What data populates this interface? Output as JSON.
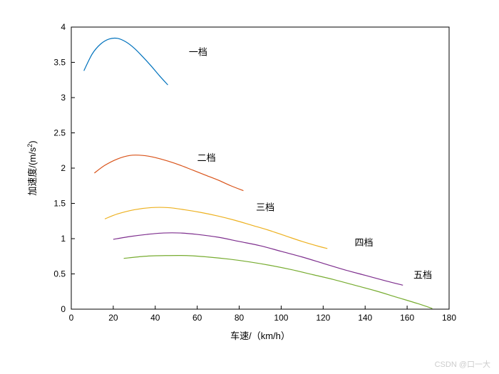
{
  "chart": {
    "type": "line",
    "background_color": "#ffffff",
    "plot_border_color": "#000000",
    "xlabel": "车速/（km/h）",
    "ylabel": "加速度/(m/s²)",
    "label_fontsize": 13,
    "tick_fontsize": 12,
    "xlim": [
      0,
      180
    ],
    "ylim": [
      0,
      4
    ],
    "xtick_step": 20,
    "ytick_step": 0.5,
    "xticks": [
      0,
      20,
      40,
      60,
      80,
      100,
      120,
      140,
      160,
      180
    ],
    "yticks": [
      0,
      0.5,
      1,
      1.5,
      2,
      2.5,
      3,
      3.5,
      4
    ],
    "line_width": 1.2,
    "series": [
      {
        "name": "gear1",
        "label": "一档",
        "color": "#0072bd",
        "label_x": 56,
        "label_y": 3.6,
        "points": [
          [
            6,
            3.38
          ],
          [
            10,
            3.62
          ],
          [
            14,
            3.76
          ],
          [
            18,
            3.83
          ],
          [
            22,
            3.84
          ],
          [
            26,
            3.79
          ],
          [
            30,
            3.7
          ],
          [
            34,
            3.58
          ],
          [
            38,
            3.45
          ],
          [
            42,
            3.31
          ],
          [
            46,
            3.18
          ]
        ]
      },
      {
        "name": "gear2",
        "label": "二档",
        "color": "#d95319",
        "label_x": 60,
        "label_y": 2.1,
        "points": [
          [
            11,
            1.93
          ],
          [
            16,
            2.04
          ],
          [
            22,
            2.13
          ],
          [
            28,
            2.18
          ],
          [
            34,
            2.18
          ],
          [
            40,
            2.15
          ],
          [
            46,
            2.1
          ],
          [
            52,
            2.04
          ],
          [
            58,
            1.97
          ],
          [
            64,
            1.9
          ],
          [
            70,
            1.83
          ],
          [
            76,
            1.75
          ],
          [
            82,
            1.68
          ]
        ]
      },
      {
        "name": "gear3",
        "label": "三档",
        "color": "#edb120",
        "label_x": 88,
        "label_y": 1.4,
        "points": [
          [
            16,
            1.28
          ],
          [
            22,
            1.35
          ],
          [
            30,
            1.41
          ],
          [
            38,
            1.44
          ],
          [
            46,
            1.44
          ],
          [
            54,
            1.41
          ],
          [
            62,
            1.37
          ],
          [
            70,
            1.32
          ],
          [
            78,
            1.26
          ],
          [
            86,
            1.19
          ],
          [
            94,
            1.12
          ],
          [
            102,
            1.04
          ],
          [
            110,
            0.96
          ],
          [
            118,
            0.89
          ],
          [
            122,
            0.86
          ]
        ]
      },
      {
        "name": "gear4",
        "label": "四档",
        "color": "#7e2f8e",
        "label_x": 135,
        "label_y": 0.9,
        "points": [
          [
            20,
            0.99
          ],
          [
            28,
            1.03
          ],
          [
            36,
            1.06
          ],
          [
            44,
            1.08
          ],
          [
            52,
            1.08
          ],
          [
            60,
            1.06
          ],
          [
            70,
            1.02
          ],
          [
            80,
            0.96
          ],
          [
            90,
            0.9
          ],
          [
            100,
            0.82
          ],
          [
            110,
            0.74
          ],
          [
            120,
            0.65
          ],
          [
            130,
            0.56
          ],
          [
            140,
            0.48
          ],
          [
            150,
            0.4
          ],
          [
            158,
            0.34
          ]
        ]
      },
      {
        "name": "gear5",
        "label": "五档",
        "color": "#77ac30",
        "label_x": 163,
        "label_y": 0.44,
        "points": [
          [
            25,
            0.72
          ],
          [
            35,
            0.75
          ],
          [
            45,
            0.76
          ],
          [
            55,
            0.76
          ],
          [
            65,
            0.74
          ],
          [
            75,
            0.71
          ],
          [
            85,
            0.67
          ],
          [
            95,
            0.62
          ],
          [
            105,
            0.56
          ],
          [
            115,
            0.49
          ],
          [
            125,
            0.42
          ],
          [
            135,
            0.34
          ],
          [
            145,
            0.26
          ],
          [
            155,
            0.17
          ],
          [
            165,
            0.08
          ],
          [
            172,
            0.01
          ]
        ]
      }
    ]
  },
  "watermark": "CSDN @口一大"
}
